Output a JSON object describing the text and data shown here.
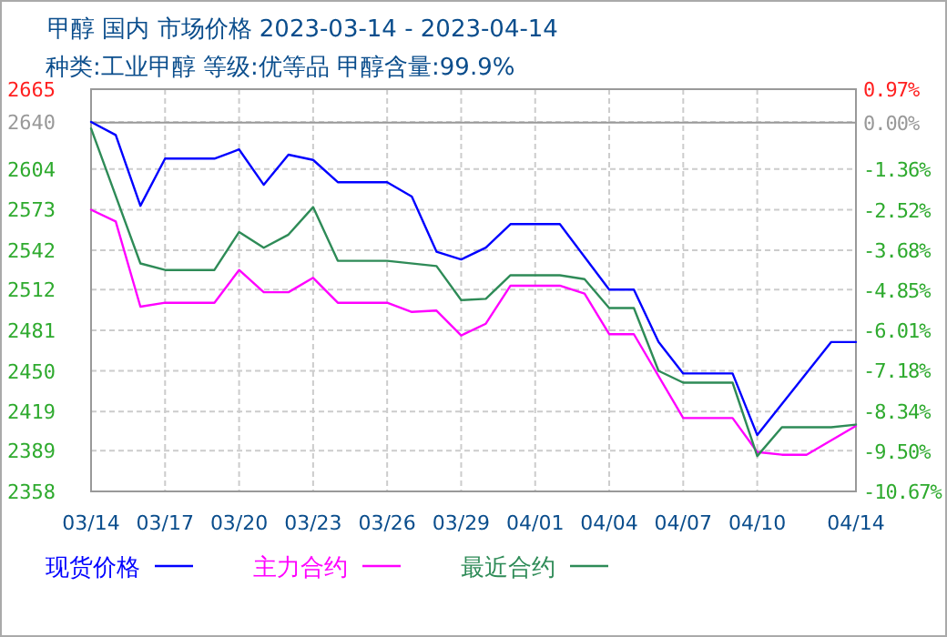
{
  "chart_data": {
    "type": "line",
    "title": "甲醇 国内 市场价格 2023-03-14 - 2023-04-14",
    "subtitle": "种类:工业甲醇 等级:优等品 甲醇含量:99.9%",
    "series": [
      {
        "name": "现货价格",
        "color": "#0000ff",
        "x": [
          "--03-14",
          "--03-15",
          "--03-16",
          "--03-17",
          "--03-19",
          "--03-20",
          "--03-21",
          "--03-22",
          "--03-23",
          "--03-24",
          "--03-26",
          "--03-27",
          "--03-28",
          "--03-29",
          "--03-30",
          "--03-31",
          "--04-02",
          "--04-04",
          "--04-05",
          "--04-06",
          "--04-07",
          "--04-09",
          "--04-10",
          "--04-13",
          "--04-14"
        ],
        "values": [
          2640,
          2630,
          2576,
          2612,
          2612,
          2619,
          2592,
          2615,
          2611,
          2594,
          2594,
          2583,
          2541,
          2535,
          2544,
          2562,
          2562,
          2512,
          2512,
          2472,
          2448,
          2448,
          2401,
          2472,
          2472
        ]
      },
      {
        "name": "主力合约",
        "color": "#ff00ff",
        "x": [
          "--03-14",
          "--03-15",
          "--03-16",
          "--03-17",
          "--03-19",
          "--03-20",
          "--03-21",
          "--03-22",
          "--03-23",
          "--03-24",
          "--03-26",
          "--03-27",
          "--03-28",
          "--03-29",
          "--03-30",
          "--03-31",
          "--04-02",
          "--04-03",
          "--04-04",
          "--04-05",
          "--04-07",
          "--04-09",
          "--04-10",
          "--04-11",
          "--04-12",
          "--04-14"
        ],
        "values": [
          2573,
          2564,
          2499,
          2502,
          2502,
          2527,
          2510,
          2510,
          2521,
          2502,
          2502,
          2495,
          2496,
          2477,
          2486,
          2515,
          2515,
          2509,
          2478,
          2478,
          2414,
          2414,
          2388,
          2386,
          2386,
          2408
        ]
      },
      {
        "name": "最近合约",
        "color": "#2e8b57",
        "x": [
          "--03-14",
          "--03-16",
          "--03-17",
          "--03-19",
          "--03-20",
          "--03-21",
          "--03-22",
          "--03-23",
          "--03-24",
          "--03-26",
          "--03-28",
          "--03-29",
          "--03-30",
          "--03-31",
          "--04-02",
          "--04-03",
          "--04-04",
          "--04-05",
          "--04-06",
          "--04-07",
          "--04-09",
          "--04-10",
          "--04-11",
          "--04-13",
          "--04-14"
        ],
        "values": [
          2635,
          2532,
          2527,
          2527,
          2556,
          2544,
          2554,
          2575,
          2534,
          2534,
          2530,
          2504,
          2505,
          2523,
          2523,
          2520,
          2498,
          2498,
          2450,
          2441,
          2441,
          2385,
          2407,
          2407,
          2409
        ]
      }
    ],
    "xlim": [
      "--03-14",
      "--04-14"
    ],
    "xticks": [
      {
        "value": "--03-14",
        "label": "03/14"
      },
      {
        "value": "--03-17",
        "label": "03/17"
      },
      {
        "value": "--03-20",
        "label": "03/20"
      },
      {
        "value": "--03-23",
        "label": "03/23"
      },
      {
        "value": "--03-26",
        "label": "03/26"
      },
      {
        "value": "--03-29",
        "label": "03/29"
      },
      {
        "value": "--04-01",
        "label": "04/01"
      },
      {
        "value": "--04-04",
        "label": "04/04"
      },
      {
        "value": "--04-07",
        "label": "04/07"
      },
      {
        "value": "--04-10",
        "label": "04/10"
      },
      {
        "value": "--04-14",
        "label": "04/14"
      }
    ],
    "ylim": [
      2358,
      2665
    ],
    "yticks": [
      2665,
      2640,
      2604,
      2573,
      2542,
      2512,
      2481,
      2450,
      2419,
      2389,
      2358
    ],
    "y2lim": [
      -10.67,
      0.97
    ],
    "y2ticks": [
      {
        "value": 0.97,
        "label": "0.97%"
      },
      {
        "value": 0,
        "label": "0.00%"
      },
      {
        "value": -1.36,
        "label": "-1.36%"
      },
      {
        "value": -2.52,
        "label": "-2.52%"
      },
      {
        "value": -3.68,
        "label": "-3.68%"
      },
      {
        "value": -4.85,
        "label": "-4.85%"
      },
      {
        "value": -6.01,
        "label": "-6.01%"
      },
      {
        "value": -7.18,
        "label": "-7.18%"
      },
      {
        "value": -8.34,
        "label": "-8.34%"
      },
      {
        "value": -9.5,
        "label": "-9.50%"
      },
      {
        "value": -10.67,
        "label": "-10.67%"
      }
    ],
    "ref_lines": [
      {
        "axis": "y2",
        "value": 0,
        "color": "#999999"
      }
    ],
    "grid": true,
    "legend": "bottom"
  }
}
